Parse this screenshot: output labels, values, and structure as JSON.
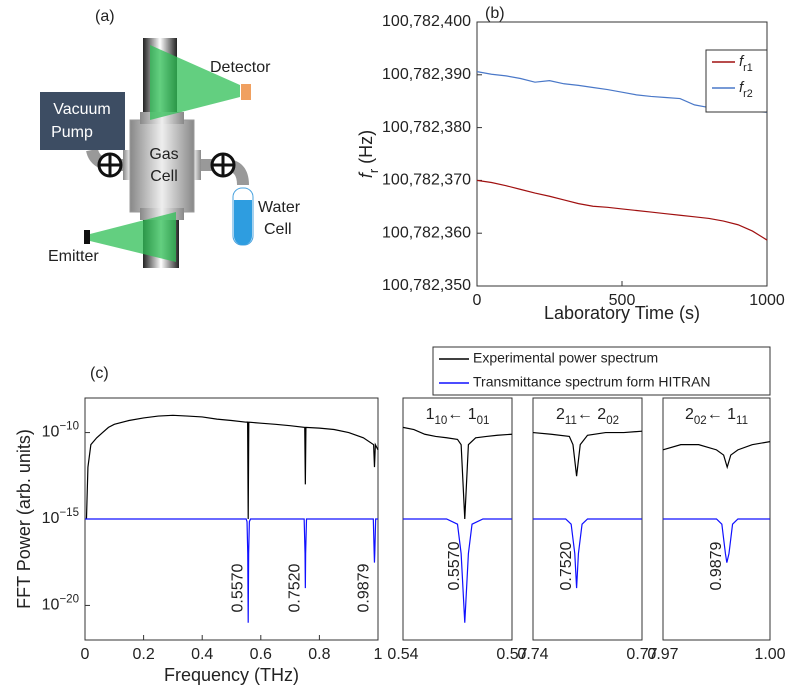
{
  "diagram": {
    "label": "(a)",
    "detector": "Detector",
    "pump": [
      "Vacuum",
      "Pump"
    ],
    "gas_cell": [
      "Gas",
      "Cell"
    ],
    "water_cell": [
      "Water",
      "Cell"
    ],
    "emitter": "Emitter"
  },
  "chart_data": [
    {
      "type": "line",
      "panel_label": "(b)",
      "xlabel": "Laboratory Time (s)",
      "ylabel": "fr (Hz)",
      "x": [
        0,
        50,
        100,
        150,
        200,
        250,
        300,
        350,
        400,
        450,
        500,
        550,
        600,
        650,
        700,
        750,
        800,
        850,
        900,
        950,
        1000
      ],
      "xlim": [
        0,
        1000
      ],
      "xticks": [
        0,
        500,
        1000
      ],
      "ylim": [
        100782350,
        100782400
      ],
      "yticks": [
        {
          "value": 100782350,
          "label": "100,782,350"
        },
        {
          "value": 100782360,
          "label": "100,782,360"
        },
        {
          "value": 100782370,
          "label": "100,782,370"
        },
        {
          "value": 100782380,
          "label": "100,782,380"
        },
        {
          "value": 100782390,
          "label": "100,782,390"
        },
        {
          "value": 100782400,
          "label": "100,782,400"
        }
      ],
      "legend": "upper right",
      "series": [
        {
          "name": "fr1",
          "color": "#a01010",
          "values": [
            100782370,
            100782369.6,
            100782369,
            100782368.3,
            100782367.6,
            100782367,
            100782366.3,
            100782365.6,
            100782365.1,
            100782364.9,
            100782364.6,
            100782364.3,
            100782364,
            100782363.7,
            100782363.4,
            100782363.1,
            100782362.8,
            100782362.3,
            100782361.6,
            100782360.4,
            100782358.7
          ]
        },
        {
          "name": "fr2",
          "color": "#4a78c8",
          "values": [
            100782390.6,
            100782390.1,
            100782389.8,
            100782389.3,
            100782388.6,
            100782388.9,
            100782388.3,
            100782388,
            100782387.6,
            100782387.2,
            100782386.7,
            100782386.2,
            100782385.9,
            100782385.7,
            100782385.5,
            100782384.3,
            100782383.8,
            100782383.7,
            100782383.4,
            100782383.1,
            100782382.9
          ]
        }
      ]
    },
    {
      "type": "line",
      "panel_label": "(c)",
      "xlabel": "Frequency (THz)",
      "ylabel": "FFT Power (arb. units)",
      "log_y": true,
      "xlim": [
        0,
        1
      ],
      "xticks": [
        0,
        0.2,
        0.4,
        0.6,
        0.8,
        1
      ],
      "ylim": [
        1e-22,
        1e-08
      ],
      "yticks": [
        {
          "value": 1e-20,
          "label": "10−20"
        },
        {
          "value": 1e-15,
          "label": "10−15"
        },
        {
          "value": 1e-10,
          "label": "10−10"
        }
      ],
      "legend": "top",
      "annotations": [
        {
          "text": "0.5570",
          "x": 0.557
        },
        {
          "text": "0.7520",
          "x": 0.752
        },
        {
          "text": "0.9879",
          "x": 0.9879
        }
      ],
      "series": [
        {
          "name": "Experimental power spectrum",
          "color": "#000000",
          "x": [
            0.005,
            0.01,
            0.02,
            0.04,
            0.06,
            0.08,
            0.1,
            0.15,
            0.2,
            0.25,
            0.3,
            0.35,
            0.4,
            0.45,
            0.5,
            0.55,
            0.555,
            0.557,
            0.559,
            0.6,
            0.65,
            0.7,
            0.75,
            0.752,
            0.754,
            0.8,
            0.85,
            0.9,
            0.95,
            0.985,
            0.988,
            0.991,
            1.0
          ],
          "values": [
            1e-15,
            1e-12,
            2e-11,
            5e-11,
            1e-10,
            2e-10,
            3e-10,
            5e-10,
            7e-10,
            9e-10,
            1e-09,
            9e-10,
            8e-10,
            6e-10,
            5e-10,
            4e-10,
            4e-10,
            1e-15,
            4e-10,
            3.5e-10,
            3e-10,
            2.5e-10,
            2e-10,
            1e-13,
            2e-10,
            1.8e-10,
            1.5e-10,
            1e-10,
            5e-11,
            2e-11,
            1e-12,
            2e-11,
            1e-11
          ]
        },
        {
          "name": "Transmittance spectrum form HITRAN",
          "color": "#1010ff",
          "x": [
            0,
            0.55,
            0.553,
            0.5555,
            0.557,
            0.5585,
            0.561,
            0.565,
            0.748,
            0.751,
            0.752,
            0.753,
            0.756,
            0.984,
            0.987,
            0.9879,
            0.989,
            0.992,
            1.0
          ],
          "values": [
            1e-15,
            1e-15,
            7e-16,
            1e-17,
            1e-21,
            1e-17,
            7e-16,
            1e-15,
            1e-15,
            1e-17,
            1e-19,
            1e-17,
            1e-15,
            1e-15,
            1e-17,
            3e-18,
            1e-17,
            1e-15,
            1e-15
          ]
        }
      ]
    },
    {
      "type": "line",
      "log_y": true,
      "title": "110← 101",
      "xlim": [
        0.54,
        0.57
      ],
      "xticks": [
        0.54,
        0.57
      ],
      "ylim": [
        1e-22,
        1e-08
      ],
      "annotations": [
        {
          "text": "0.5570",
          "x": 0.557
        }
      ],
      "series": [
        {
          "color": "#000000",
          "x": [
            0.54,
            0.543,
            0.546,
            0.549,
            0.552,
            0.555,
            0.556,
            0.557,
            0.558,
            0.56,
            0.563,
            0.566,
            0.57
          ],
          "values": [
            2e-10,
            1.5e-10,
            8e-11,
            6e-11,
            5e-11,
            4e-11,
            2e-11,
            1e-15,
            2e-11,
            5e-11,
            6e-11,
            7e-11,
            8e-11
          ]
        },
        {
          "color": "#1010ff",
          "x": [
            0.54,
            0.552,
            0.555,
            0.556,
            0.557,
            0.558,
            0.559,
            0.562,
            0.57
          ],
          "values": [
            1e-15,
            1e-15,
            5e-16,
            1e-17,
            1e-21,
            1e-17,
            5e-16,
            1e-15,
            1e-15
          ]
        }
      ]
    },
    {
      "type": "line",
      "log_y": true,
      "title": "211← 202",
      "xlim": [
        0.74,
        0.77
      ],
      "xticks": [
        0.74,
        0.77
      ],
      "ylim": [
        1e-22,
        1e-08
      ],
      "annotations": [
        {
          "text": "0.7520",
          "x": 0.752
        }
      ],
      "series": [
        {
          "color": "#000000",
          "x": [
            0.74,
            0.745,
            0.75,
            0.751,
            0.752,
            0.753,
            0.755,
            0.76,
            0.765,
            0.77
          ],
          "values": [
            1e-10,
            8e-11,
            6e-11,
            2e-11,
            3e-13,
            2e-11,
            7e-11,
            1e-10,
            1e-10,
            1.2e-10
          ]
        },
        {
          "color": "#1010ff",
          "x": [
            0.74,
            0.749,
            0.7505,
            0.7515,
            0.752,
            0.7525,
            0.7535,
            0.755,
            0.77
          ],
          "values": [
            1e-15,
            1e-15,
            5e-16,
            1e-17,
            1e-19,
            1e-17,
            5e-16,
            1e-15,
            1e-15
          ]
        }
      ]
    },
    {
      "type": "line",
      "log_y": true,
      "title": "202← 111",
      "xlim": [
        0.97,
        1.0
      ],
      "xticks": [
        0.97,
        {
          "value": 1.0,
          "label": "1.00"
        }
      ],
      "ylim": [
        1e-22,
        1e-08
      ],
      "annotations": [
        {
          "text": "0.9879",
          "x": 0.9879
        }
      ],
      "series": [
        {
          "color": "#000000",
          "x": [
            0.97,
            0.975,
            0.98,
            0.985,
            0.987,
            0.988,
            0.989,
            0.991,
            0.995,
            1.0
          ],
          "values": [
            1e-11,
            2e-11,
            2e-11,
            1e-11,
            5e-12,
            1e-12,
            5e-12,
            1e-11,
            2e-11,
            3e-11
          ]
        },
        {
          "color": "#1010ff",
          "x": [
            0.97,
            0.985,
            0.9865,
            0.9875,
            0.9879,
            0.9885,
            0.9895,
            0.991,
            1.0
          ],
          "values": [
            1e-15,
            1e-15,
            5e-16,
            1e-17,
            3e-18,
            1e-17,
            5e-16,
            1e-15,
            1e-15
          ]
        }
      ]
    }
  ]
}
